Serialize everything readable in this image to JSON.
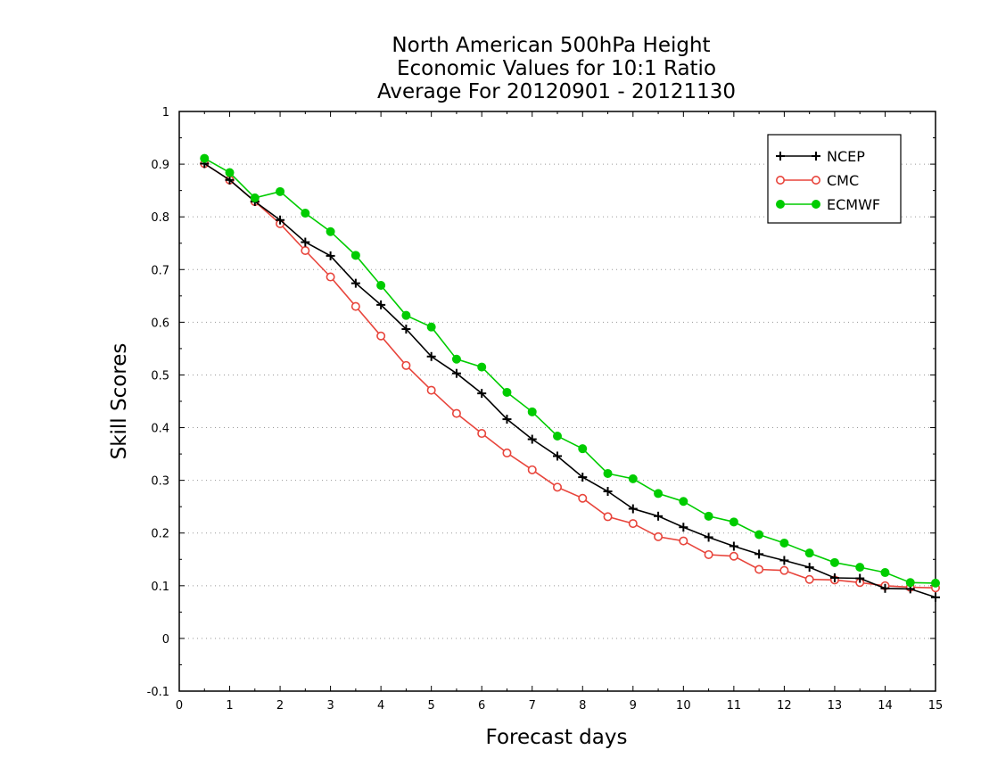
{
  "chart_data": {
    "type": "line",
    "title_lines": [
      "North American 500hPa Height",
      "Economic Values for 10:1 Ratio",
      "Average For 20120901 - 20121130"
    ],
    "xlabel": "Forecast days",
    "ylabel": "Skill Scores",
    "xlim": [
      0,
      15
    ],
    "ylim": [
      -0.1,
      1
    ],
    "xticks": [
      0,
      1,
      2,
      3,
      4,
      5,
      6,
      7,
      8,
      9,
      10,
      11,
      12,
      13,
      14,
      15
    ],
    "yticks": [
      -0.1,
      0,
      0.1,
      0.2,
      0.3,
      0.4,
      0.5,
      0.6,
      0.7,
      0.8,
      0.9,
      1
    ],
    "ytick_labels": [
      "-0.1",
      "0",
      "0.1",
      "0.2",
      "0.3",
      "0.4",
      "0.5",
      "0.6",
      "0.7",
      "0.8",
      "0.9",
      "1"
    ],
    "grid": "horizontal dotted",
    "legend_position": "top-right",
    "x": [
      0.5,
      1,
      1.5,
      2,
      2.5,
      3,
      3.5,
      4,
      4.5,
      5,
      5.5,
      6,
      6.5,
      7,
      7.5,
      8,
      8.5,
      9,
      9.5,
      10,
      10.5,
      11,
      11.5,
      12,
      12.5,
      13,
      13.5,
      14,
      14.5,
      15
    ],
    "series": [
      {
        "name": "NCEP",
        "color": "#000000",
        "marker": "plus",
        "values": [
          0.901,
          0.87,
          0.829,
          0.794,
          0.752,
          0.726,
          0.674,
          0.633,
          0.587,
          0.535,
          0.503,
          0.465,
          0.416,
          0.378,
          0.346,
          0.306,
          0.279,
          0.246,
          0.232,
          0.211,
          0.192,
          0.175,
          0.16,
          0.148,
          0.135,
          0.115,
          0.114,
          0.095,
          0.094,
          0.078
        ]
      },
      {
        "name": "CMC",
        "color": "#e8453c",
        "marker": "open-circle",
        "values": [
          0.901,
          0.87,
          0.829,
          0.787,
          0.736,
          0.686,
          0.63,
          0.574,
          0.518,
          0.471,
          0.427,
          0.389,
          0.352,
          0.32,
          0.287,
          0.266,
          0.231,
          0.218,
          0.193,
          0.185,
          0.159,
          0.156,
          0.131,
          0.129,
          0.112,
          0.111,
          0.106,
          0.1,
          0.097,
          0.096
        ]
      },
      {
        "name": "ECMWF",
        "color": "#00cc00",
        "marker": "filled-circle",
        "values": [
          0.911,
          0.884,
          0.836,
          0.848,
          0.807,
          0.772,
          0.727,
          0.67,
          0.613,
          0.591,
          0.53,
          0.515,
          0.467,
          0.43,
          0.384,
          0.36,
          0.313,
          0.303,
          0.275,
          0.26,
          0.232,
          0.221,
          0.197,
          0.181,
          0.162,
          0.144,
          0.135,
          0.125,
          0.106,
          0.105
        ]
      }
    ]
  }
}
